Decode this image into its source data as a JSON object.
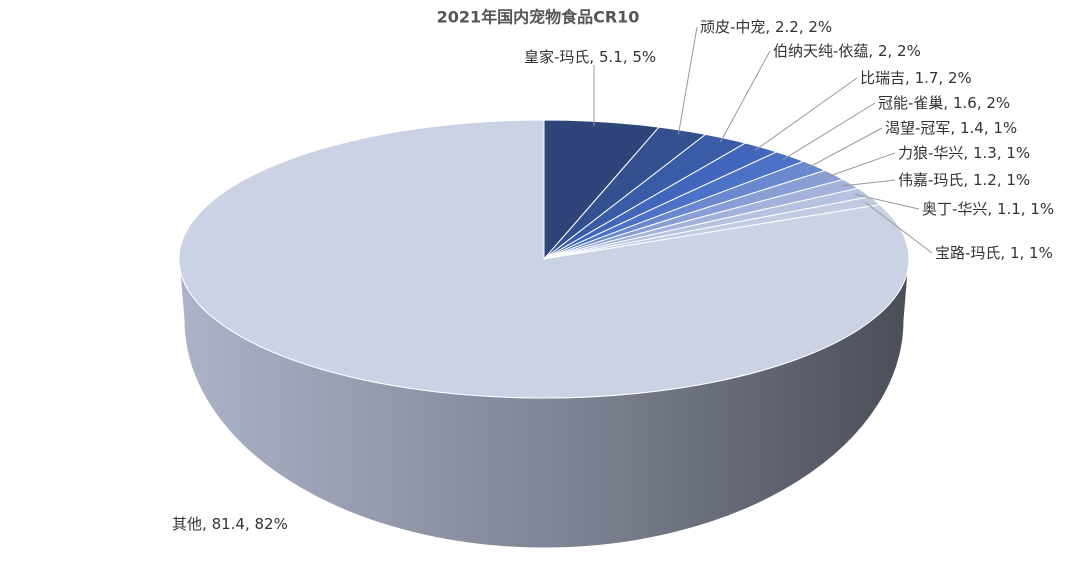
{
  "chart_data": {
    "type": "pie3d",
    "title": "2021年国内宠物食品CR10",
    "categories": [
      "皇家-玛氏",
      "顽皮-中宠",
      "伯纳天纯-依蕴",
      "比瑞吉",
      "冠能-雀巢",
      "渴望-冠军",
      "力狼-华兴",
      "伟嘉-玛氏",
      "奥丁-华兴",
      "宝路-玛氏",
      "其他"
    ],
    "values": [
      5.1,
      2.2,
      2,
      1.7,
      1.6,
      1.4,
      1.3,
      1.2,
      1.1,
      1,
      81.4
    ],
    "value_labels": [
      "5.1, 5%",
      "2.2, 2%",
      "2, 2%",
      "1.7, 2%",
      "1.6, 2%",
      "1.4, 1%",
      "1.3, 1%",
      "1.2, 1%",
      "1.1, 1%",
      "1, 1%",
      "81.4, 82%"
    ],
    "colors": [
      "#2f4479",
      "#34508f",
      "#3a5ba6",
      "#4166bb",
      "#4c72c8",
      "#6a88cf",
      "#889ed5",
      "#a3b2da",
      "#b6c2df",
      "#c2cbe2",
      "#cbd2e4"
    ]
  }
}
